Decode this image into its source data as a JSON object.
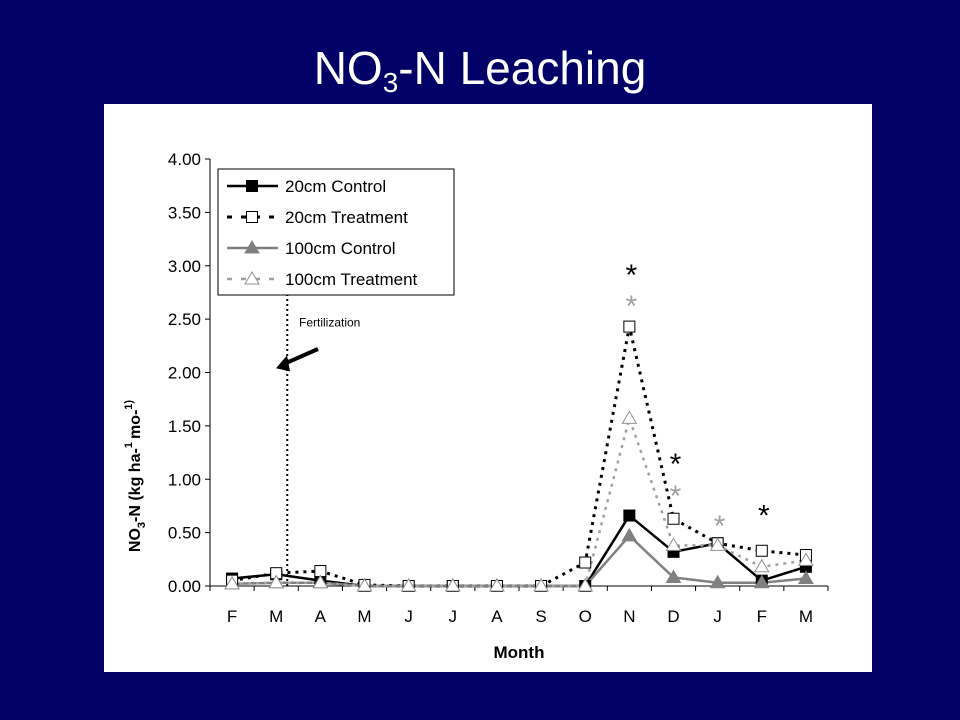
{
  "slide": {
    "title_main": "NO",
    "title_sub": "3",
    "title_rest": "-N Leaching"
  },
  "chart_data": {
    "type": "line",
    "categories": [
      "F",
      "M",
      "A",
      "M",
      "J",
      "J",
      "A",
      "S",
      "O",
      "N",
      "D",
      "J",
      "F",
      "M"
    ],
    "xlabel": "Month",
    "ylabel": "NO3-N (kg ha-1 mo-1)",
    "ylim": [
      0,
      4
    ],
    "yticks": [
      "0.00",
      "0.50",
      "1.00",
      "1.50",
      "2.00",
      "2.50",
      "3.00",
      "3.50",
      "4.00"
    ],
    "legend_position": "top-left",
    "series": [
      {
        "name": "20cm Control",
        "color": "#000000",
        "marker": "filled-square",
        "line": "solid",
        "values": [
          0.07,
          0.11,
          0.05,
          0.0,
          0.0,
          0.0,
          0.0,
          0.0,
          0.0,
          0.66,
          0.32,
          0.4,
          0.05,
          0.18
        ]
      },
      {
        "name": "20cm Treatment",
        "color": "#000000",
        "marker": "open-square",
        "line": "dotted",
        "values": [
          0.05,
          0.12,
          0.14,
          0.01,
          0.0,
          0.0,
          0.0,
          0.0,
          0.22,
          2.43,
          0.63,
          0.4,
          0.33,
          0.29
        ]
      },
      {
        "name": "100cm Control",
        "color": "#808080",
        "marker": "filled-triangle",
        "line": "solid",
        "values": [
          0.02,
          0.03,
          0.03,
          0.0,
          0.0,
          0.0,
          0.0,
          0.0,
          0.0,
          0.47,
          0.08,
          0.03,
          0.03,
          0.07
        ]
      },
      {
        "name": "100cm Treatment",
        "color": "#a0a0a0",
        "marker": "open-triangle",
        "line": "dotted",
        "values": [
          0.02,
          0.03,
          0.03,
          0.0,
          0.0,
          0.0,
          0.0,
          0.0,
          0.0,
          1.57,
          0.38,
          0.38,
          0.18,
          0.24
        ]
      }
    ],
    "annotations": {
      "fertilization_label": "Fertilization",
      "fertilization_between": [
        "M",
        "M"
      ],
      "significance": [
        {
          "month_index": 9,
          "symbol": "*",
          "color": "#000000",
          "y": 2.95
        },
        {
          "month_index": 9,
          "symbol": "*",
          "color": "#a0a0a0",
          "y": 2.66
        },
        {
          "month_index": 10,
          "symbol": "*",
          "color": "#000000",
          "y": 1.18
        },
        {
          "month_index": 10,
          "symbol": "*",
          "color": "#a0a0a0",
          "y": 0.88
        },
        {
          "month_index": 11,
          "symbol": "*",
          "color": "#a0a0a0",
          "y": 0.6
        },
        {
          "month_index": 12,
          "symbol": "*",
          "color": "#000000",
          "y": 0.7
        }
      ]
    }
  }
}
